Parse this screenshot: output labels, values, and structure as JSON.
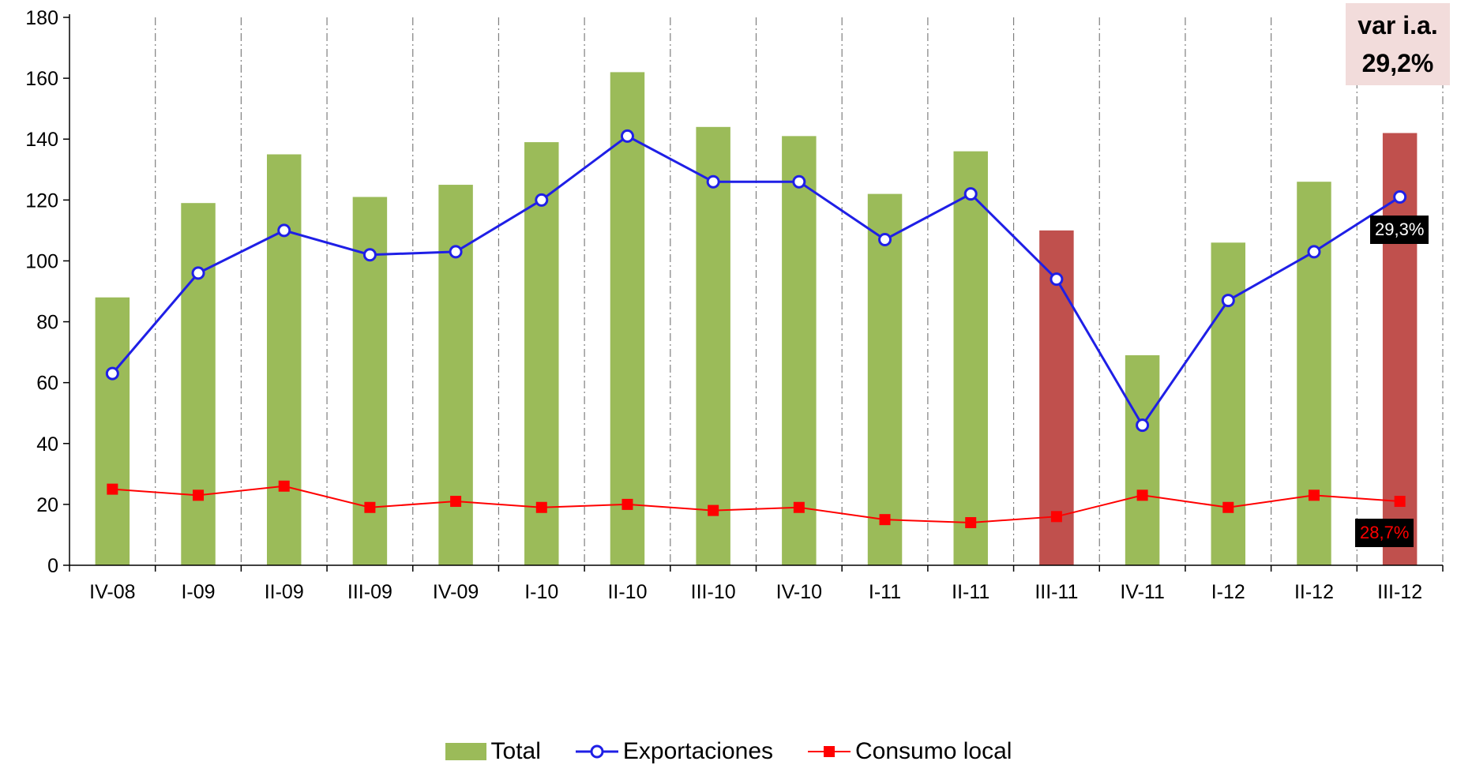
{
  "chart_data": {
    "type": "bar",
    "categories": [
      "IV-08",
      "I-09",
      "II-09",
      "III-09",
      "IV-09",
      "I-10",
      "II-10",
      "III-10",
      "IV-10",
      "I-11",
      "II-11",
      "III-11",
      "IV-11",
      "I-12",
      "II-12",
      "III-12"
    ],
    "ylim": [
      0,
      180
    ],
    "yticks": [
      0,
      20,
      40,
      60,
      80,
      100,
      120,
      140,
      160,
      180
    ],
    "series": [
      {
        "name": "Total",
        "kind": "bar",
        "color": "#9bbb59",
        "highlight_color": "#c0504d",
        "highlight_indices": [
          11,
          15
        ],
        "values": [
          88,
          119,
          135,
          121,
          125,
          139,
          162,
          144,
          141,
          122,
          136,
          110,
          69,
          106,
          126,
          142
        ]
      },
      {
        "name": "Exportaciones",
        "kind": "line",
        "color": "#1f1fe6",
        "marker": "circle",
        "values": [
          63,
          96,
          110,
          102,
          103,
          120,
          141,
          126,
          126,
          107,
          122,
          94,
          46,
          87,
          103,
          121
        ]
      },
      {
        "name": "Consumo local",
        "kind": "line",
        "color": "#ff0000",
        "marker": "square",
        "values": [
          25,
          23,
          26,
          19,
          21,
          19,
          20,
          18,
          19,
          15,
          14,
          16,
          23,
          19,
          23,
          21
        ]
      }
    ],
    "grid": {
      "vertical_dashed": true,
      "horizontal": false
    },
    "legend": "bottom-center"
  },
  "annotations": {
    "var_label_line1": "var i.a.",
    "var_label_line2": "29,2%",
    "export_var": "29,3%",
    "consumo_var": "28,7%"
  },
  "colors": {
    "annot_box_bg": "#f2dcdb",
    "badge_bg": "#000000",
    "export_badge_text": "#ffffff",
    "consumo_badge_text": "#ff0000"
  }
}
